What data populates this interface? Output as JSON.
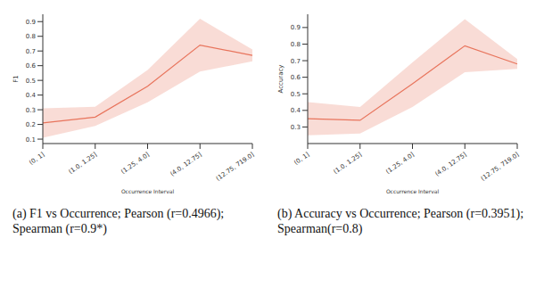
{
  "chart_data": [
    {
      "type": "line",
      "caption": "(a) F1 vs Occurrence; Pearson (r=0.4966); Spearman (r=0.9*)",
      "x_label": "Occurrence Interval",
      "y_label": "F1",
      "categories": [
        "(0, 1]",
        "(1.0, 1.25]",
        "(1.25, 4.0]",
        "(4.0, 12.75]",
        "(12.75, 719.0]"
      ],
      "values": [
        0.21,
        0.25,
        0.46,
        0.74,
        0.67
      ],
      "lower": [
        0.11,
        0.19,
        0.35,
        0.56,
        0.63
      ],
      "upper": [
        0.31,
        0.32,
        0.57,
        0.92,
        0.71
      ],
      "color": "#e8745c",
      "ylim": [
        0.07,
        0.95
      ],
      "yticks": [
        0.1,
        0.2,
        0.3,
        0.4,
        0.5,
        0.6,
        0.7,
        0.8,
        0.9
      ]
    },
    {
      "type": "line",
      "caption": "(b) Accuracy vs Occurrence; Pearson (r=0.3951); Spearman(r=0.8)",
      "x_label": "Occurrence Interval",
      "y_label": "Accuracy",
      "categories": [
        "(0, 1]",
        "(1.0, 1.25]",
        "(1.25, 4.0]",
        "(4.0, 12.75]",
        "(12.75, 719.0]"
      ],
      "values": [
        0.35,
        0.34,
        0.56,
        0.79,
        0.68
      ],
      "lower": [
        0.25,
        0.26,
        0.42,
        0.63,
        0.65
      ],
      "upper": [
        0.45,
        0.42,
        0.69,
        0.95,
        0.71
      ],
      "color": "#e8745c",
      "ylim": [
        0.2,
        0.98
      ],
      "yticks": [
        0.3,
        0.4,
        0.5,
        0.6,
        0.7,
        0.8,
        0.9
      ]
    }
  ]
}
